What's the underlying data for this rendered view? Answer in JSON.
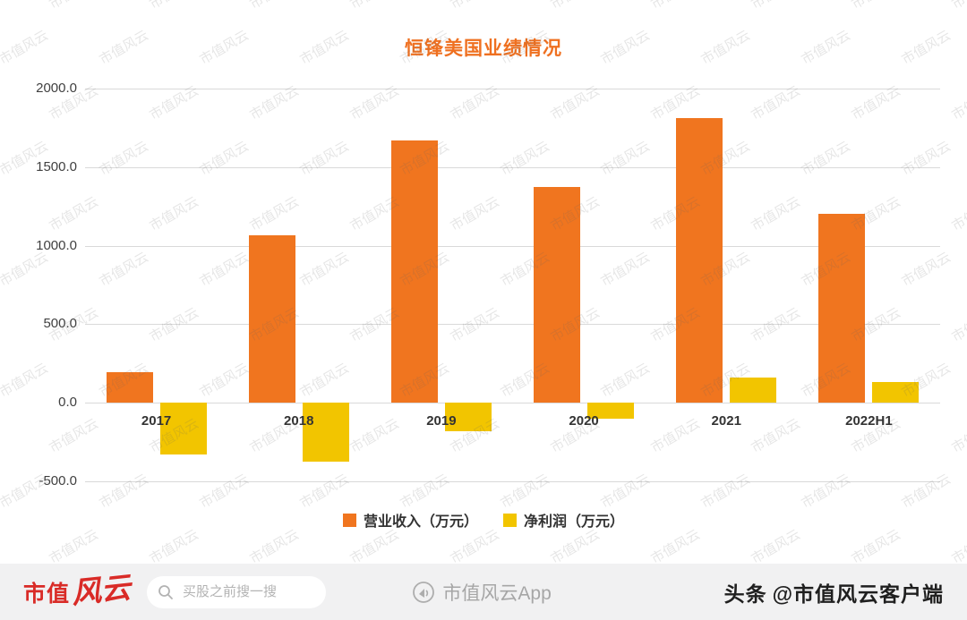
{
  "watermark": {
    "text": "市值风云"
  },
  "chart": {
    "title": "恒锋美国业绩情况"
  },
  "chart_data": {
    "type": "bar",
    "title": "恒锋美国业绩情况",
    "categories": [
      "2017",
      "2018",
      "2019",
      "2020",
      "2021",
      "2022H1"
    ],
    "series": [
      {
        "name": "营业收入（万元）",
        "color": "#f0751f",
        "values": [
          195,
          1065,
          1670,
          1375,
          1810,
          1205
        ]
      },
      {
        "name": "净利润（万元）",
        "color": "#f2c500",
        "values": [
          -330,
          -375,
          -180,
          -100,
          160,
          130
        ]
      }
    ],
    "ylim": [
      -500,
      2000
    ],
    "yticks": [
      2000.0,
      1500.0,
      1000.0,
      500.0,
      0.0,
      -500.0
    ],
    "ytick_labels": [
      "2000.0",
      "1500.0",
      "1000.0",
      "500.0",
      "0.0",
      "-500.0"
    ],
    "grid": true,
    "legend_position": "bottom"
  },
  "footer": {
    "logo_primary": "市值",
    "logo_script": "风云",
    "search_placeholder": "买股之前搜一搜",
    "app_label": "市值风云App",
    "toutiao_label": "头条",
    "account_label": "@市值风云客户端"
  }
}
